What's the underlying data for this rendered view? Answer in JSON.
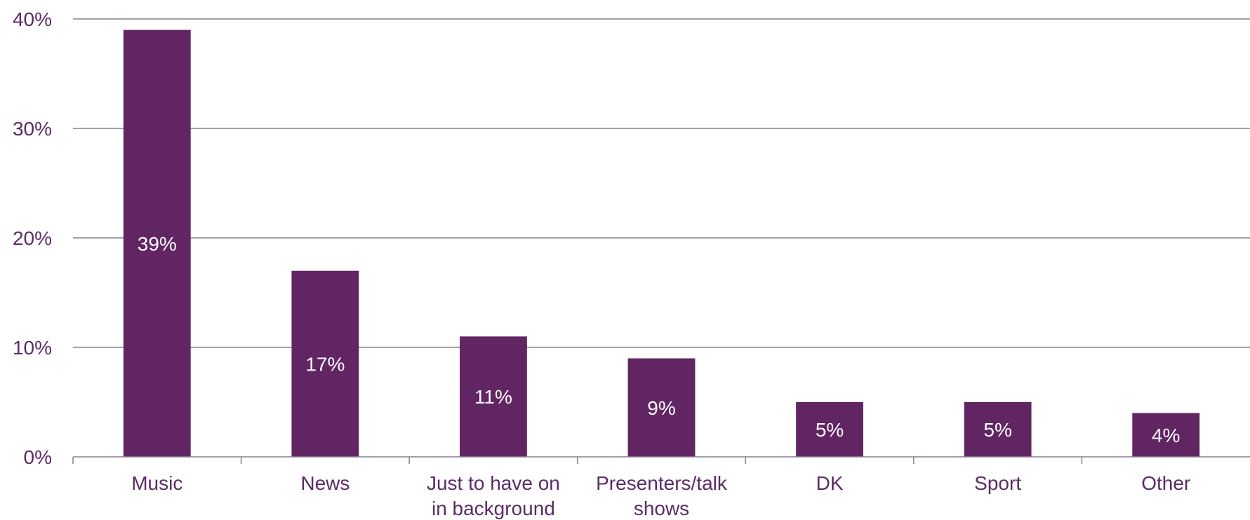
{
  "chart_data": {
    "type": "bar",
    "categories": [
      [
        "Music"
      ],
      [
        "News"
      ],
      [
        "Just to have on",
        "in background"
      ],
      [
        "Presenters/talk",
        "shows"
      ],
      [
        "DK"
      ],
      [
        "Sport"
      ],
      [
        "Other"
      ]
    ],
    "values": [
      39,
      17,
      11,
      9,
      5,
      5,
      4
    ],
    "data_labels": [
      "39%",
      "17%",
      "11%",
      "9%",
      "5%",
      "5%",
      "4%"
    ],
    "ylim": [
      0,
      40
    ],
    "yticks": [
      0,
      10,
      20,
      30,
      40
    ],
    "ytick_labels": [
      "0%",
      "10%",
      "20%",
      "30%",
      "40%"
    ],
    "grid": true,
    "legend": "none",
    "colors": {
      "bar": "#622564",
      "text": "#5c2b66",
      "grid": "#8a7f8f",
      "data_label": "#ffffff"
    }
  }
}
